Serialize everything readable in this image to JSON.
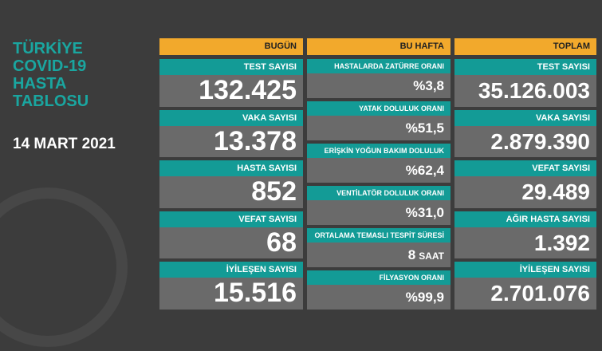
{
  "header": {
    "title_lines": [
      "TÜRKİYE",
      "COVID-19",
      "HASTA",
      "TABLOSU"
    ],
    "date": "14 MART 2021"
  },
  "columns": [
    {
      "title": "BUGÜN",
      "items": [
        {
          "label": "TEST SAYISI",
          "value": "132.425"
        },
        {
          "label": "VAKA SAYISI",
          "value": "13.378"
        },
        {
          "label": "HASTA SAYISI",
          "value": "852"
        },
        {
          "label": "VEFAT SAYISI",
          "value": "68"
        },
        {
          "label": "İYİLEŞEN SAYISI",
          "value": "15.516"
        }
      ]
    },
    {
      "title": "BU HAFTA",
      "items": [
        {
          "label": "HASTALARDA ZATÜRRE ORANI",
          "value": "%3,8"
        },
        {
          "label": "YATAK DOLULUK ORANI",
          "value": "%51,5"
        },
        {
          "label": "ERİŞKİN YOĞUN BAKIM DOLULUK ORANI",
          "value": "%62,4"
        },
        {
          "label": "VENTİLATÖR DOLULUK ORANI",
          "value": "%31,0"
        },
        {
          "label": "ORTALAMA TEMASLI TESPİT SÜRESİ",
          "value": "8",
          "unit": "SAAT"
        },
        {
          "label": "FİLYASYON ORANI",
          "value": "%99,9"
        }
      ]
    },
    {
      "title": "TOPLAM",
      "items": [
        {
          "label": "TEST SAYISI",
          "value": "35.126.003"
        },
        {
          "label": "VAKA SAYISI",
          "value": "2.879.390"
        },
        {
          "label": "VEFAT SAYISI",
          "value": "29.489"
        },
        {
          "label": "AĞIR HASTA SAYISI",
          "value": "1.392"
        },
        {
          "label": "İYİLEŞEN SAYISI",
          "value": "2.701.076"
        }
      ]
    }
  ]
}
